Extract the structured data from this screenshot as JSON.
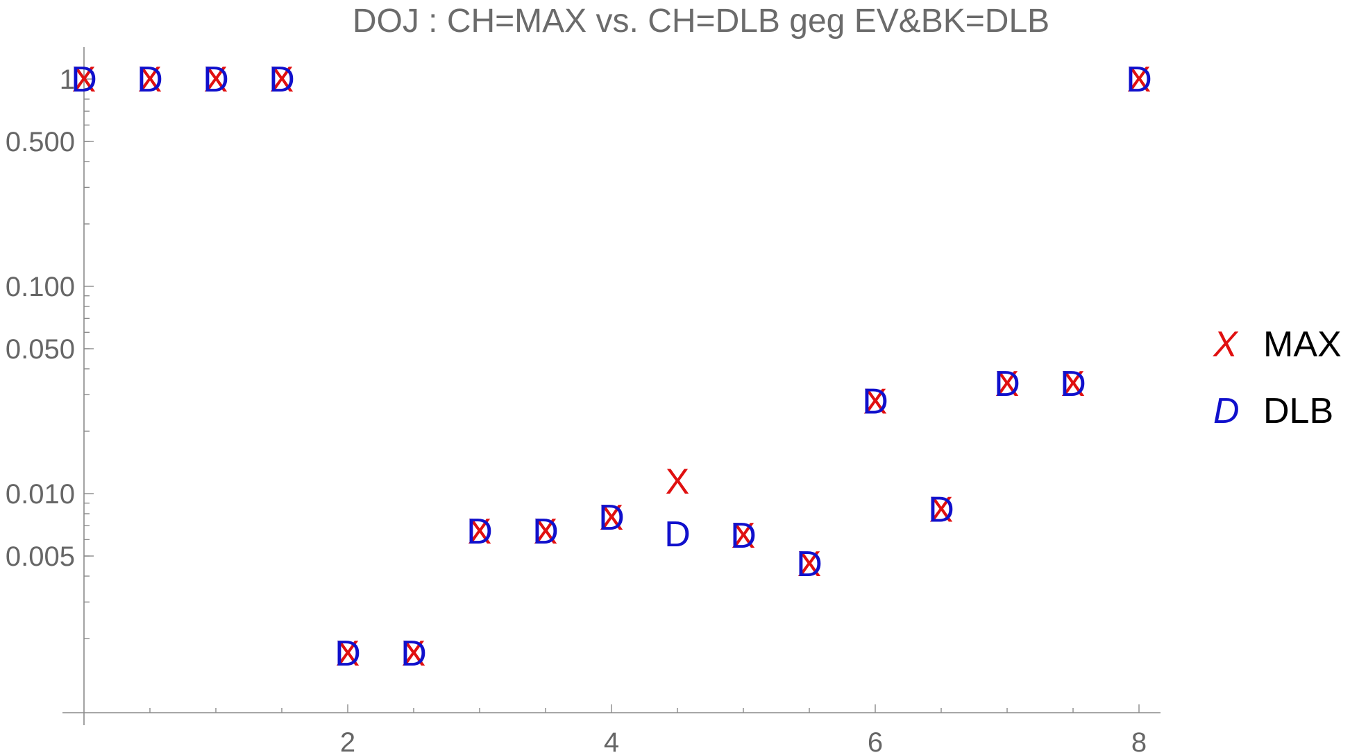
{
  "chart_data": {
    "type": "scatter",
    "title": "DOJ : CH=MAX vs. CH=DLB geg EV&BK=DLB",
    "xlabel": "",
    "ylabel": "",
    "xlim": [
      0,
      8.3
    ],
    "ylim": [
      0.0014,
      1.35
    ],
    "y_scale": "log",
    "x_ticks": [
      2,
      4,
      6,
      8
    ],
    "x_tick_labels": [
      "2",
      "4",
      "6",
      "8"
    ],
    "y_ticks": [
      0.005,
      0.01,
      0.05,
      0.1,
      0.5,
      1
    ],
    "y_tick_labels": [
      "0.005",
      "0.010",
      "0.050",
      "0.100",
      "0.500",
      "1"
    ],
    "legend_position": "right",
    "series": [
      {
        "name": "MAX",
        "marker": "X",
        "color": "#e01010",
        "points": [
          [
            0,
            1
          ],
          [
            0.5,
            1
          ],
          [
            1,
            1
          ],
          [
            1.5,
            1
          ],
          [
            2,
            0.0017
          ],
          [
            2.5,
            0.0017
          ],
          [
            3,
            0.0066
          ],
          [
            3.5,
            0.0066
          ],
          [
            4,
            0.0077
          ],
          [
            4.5,
            0.0115
          ],
          [
            5,
            0.0063
          ],
          [
            5.5,
            0.0046
          ],
          [
            6,
            0.028
          ],
          [
            6.5,
            0.0084
          ],
          [
            7,
            0.034
          ],
          [
            7.5,
            0.034
          ],
          [
            8,
            1
          ]
        ]
      },
      {
        "name": "DLB",
        "marker": "D",
        "color": "#1010cc",
        "points": [
          [
            0,
            1
          ],
          [
            0.5,
            1
          ],
          [
            1,
            1
          ],
          [
            1.5,
            1
          ],
          [
            2,
            0.0017
          ],
          [
            2.5,
            0.0017
          ],
          [
            3,
            0.0066
          ],
          [
            3.5,
            0.0066
          ],
          [
            4,
            0.0077
          ],
          [
            4.5,
            0.0064
          ],
          [
            5,
            0.0063
          ],
          [
            5.5,
            0.0046
          ],
          [
            6,
            0.028
          ],
          [
            6.5,
            0.0084
          ],
          [
            7,
            0.034
          ],
          [
            7.5,
            0.034
          ],
          [
            8,
            1
          ]
        ]
      }
    ]
  }
}
